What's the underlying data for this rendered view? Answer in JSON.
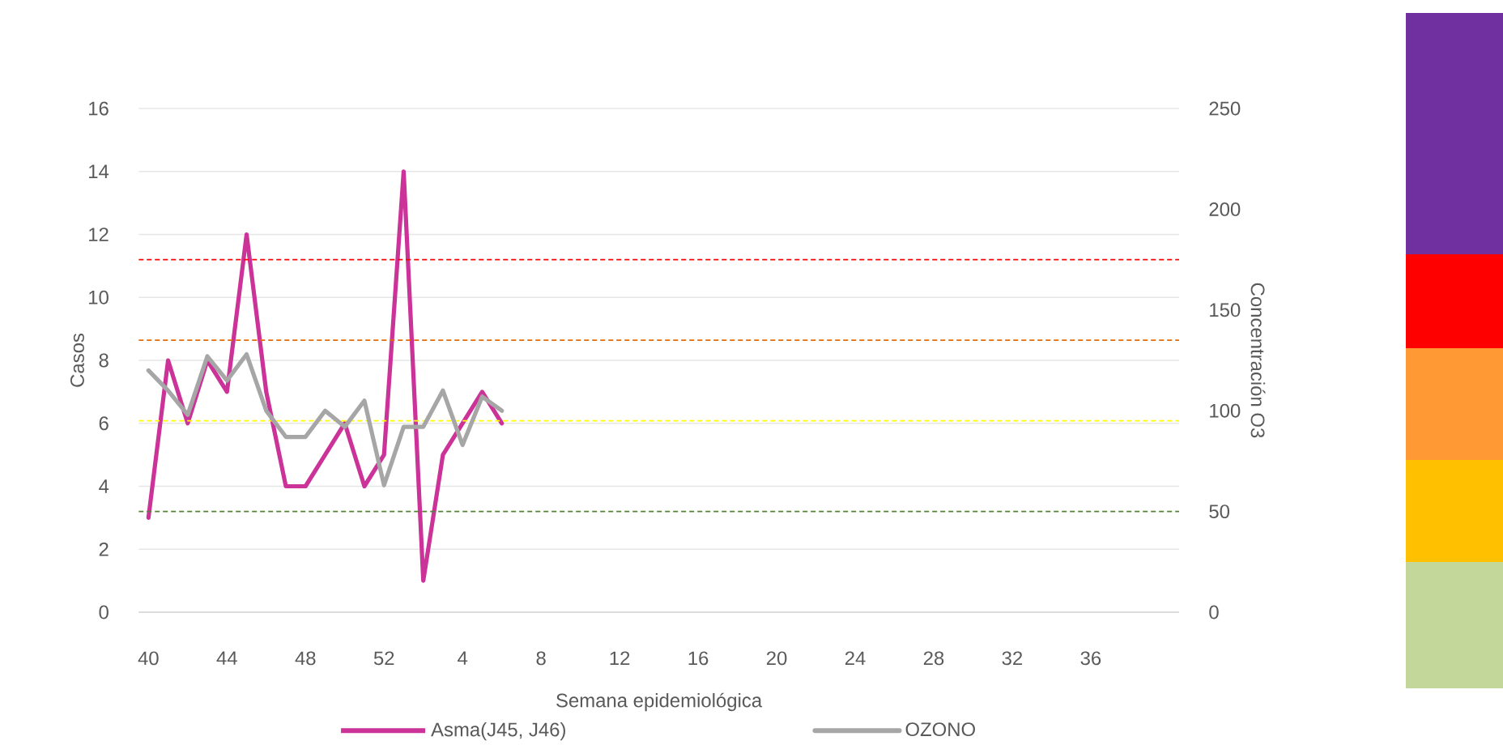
{
  "chart_data": {
    "type": "line",
    "xlabel": "Semana epidemiológica",
    "ylabel": "Casos",
    "y2label": "Concentración O3",
    "categories": [
      "40",
      null,
      null,
      null,
      "44",
      null,
      null,
      null,
      "48",
      null,
      null,
      null,
      "52",
      null,
      null,
      null,
      "4",
      null,
      null,
      null,
      "8",
      null,
      null,
      null,
      "12",
      null,
      null,
      null,
      "16",
      null,
      null,
      null,
      "20",
      null,
      null,
      null,
      "24",
      null,
      null,
      null,
      "28",
      null,
      null,
      null,
      "32",
      null,
      null,
      null,
      "36",
      null,
      null,
      null,
      null
    ],
    "series": [
      {
        "name": "Asma(J45, J46)",
        "color": "#cc3399",
        "values": [
          3,
          8,
          6,
          8,
          7,
          12,
          7,
          4,
          4,
          5,
          6,
          4,
          5,
          14,
          1,
          5,
          6,
          7,
          6,
          null,
          null,
          null,
          null,
          null,
          null,
          null,
          null,
          null,
          null,
          null,
          null,
          null,
          null,
          null,
          null,
          null,
          null,
          null,
          null,
          null,
          null,
          null,
          null,
          null,
          null,
          null,
          null,
          null,
          null,
          null,
          null,
          null,
          null
        ]
      },
      {
        "name": "OZONO",
        "color": "#a6a6a6",
        "axis": "y2",
        "values": [
          120,
          110,
          98,
          127,
          115,
          128,
          100,
          87,
          87,
          100,
          92,
          105,
          63,
          92,
          92,
          110,
          83,
          107,
          100,
          null,
          null,
          null,
          null,
          null,
          null,
          null,
          null,
          null,
          null,
          null,
          null,
          null,
          null,
          null,
          null,
          null,
          null,
          null,
          null,
          null,
          null,
          null,
          null,
          null,
          null,
          null,
          null,
          null,
          null,
          null,
          null,
          null,
          null
        ]
      }
    ],
    "ylim": [
      0,
      16
    ],
    "yticks": [
      0,
      2,
      4,
      6,
      8,
      10,
      12,
      14,
      16
    ],
    "y2lim": [
      0,
      250
    ],
    "y2ticks": [
      0,
      50,
      100,
      150,
      200,
      250
    ],
    "ref_lines": [
      {
        "axis": "y2",
        "value": 175,
        "color": "#ff0000",
        "line_style": "dashed"
      },
      {
        "axis": "y2",
        "value": 135,
        "color": "#e36c09",
        "line_style": "dashed"
      },
      {
        "axis": "y2",
        "value": 95,
        "color": "#ffff00",
        "line_style": "dashed"
      },
      {
        "axis": "y2",
        "value": 50,
        "color": "#548235",
        "line_style": "dashed"
      }
    ],
    "grid": "y",
    "legend": "bottom"
  }
}
